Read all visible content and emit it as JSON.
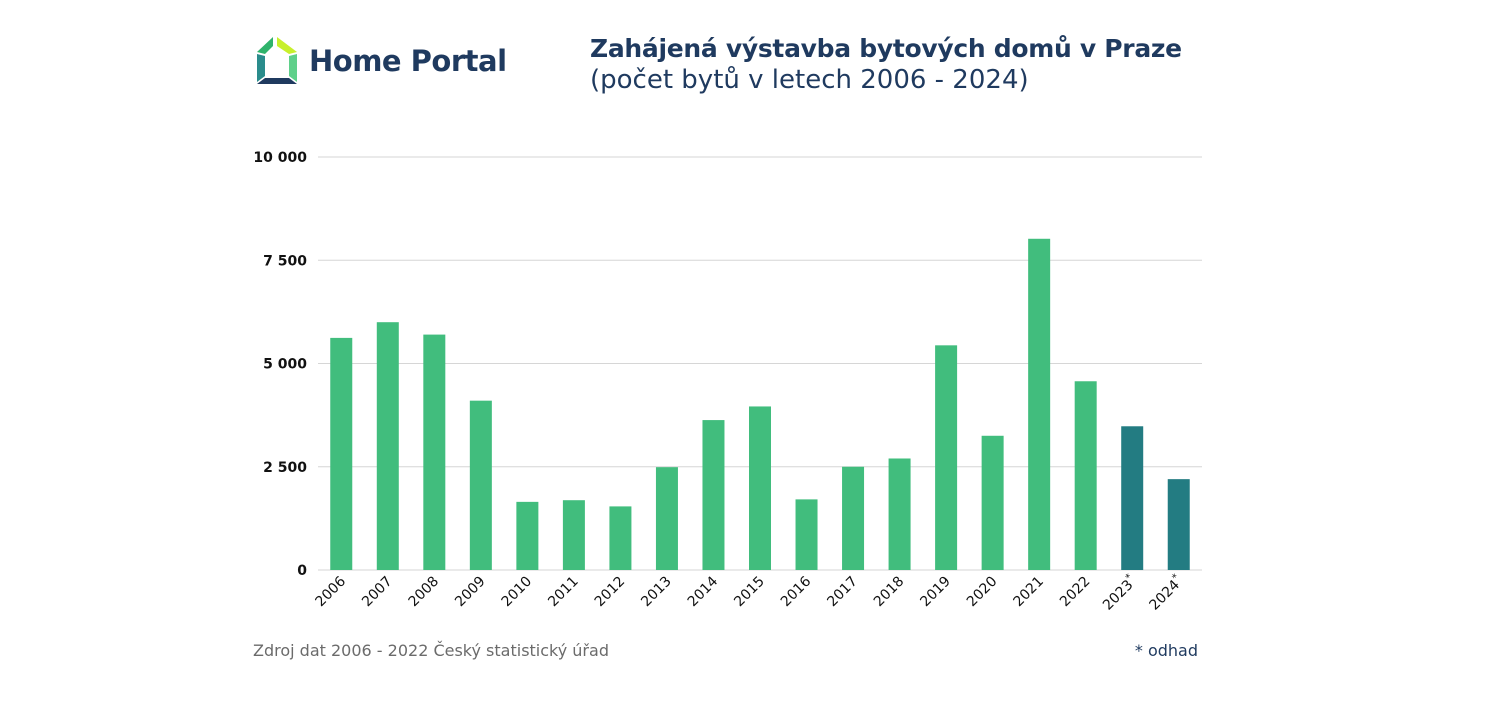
{
  "brand": {
    "name": "Home Portal",
    "colors": {
      "dark": "#1f3a5f",
      "green": "#2fb36b",
      "lime": "#c8f02c",
      "teal": "#2a8c8c"
    }
  },
  "header": {
    "title": "Zahájená výstavba bytových domů v Praze",
    "subtitle": "(počet bytů v letech 2006 - 2024)"
  },
  "footer": {
    "source": "Zdroj dat 2006 - 2022 Český statistický úřad",
    "note": "* odhad"
  },
  "chart_data": {
    "type": "bar",
    "title": "Zahájená výstavba bytových domů v Praze",
    "subtitle": "(počet bytů v letech 2006 - 2024)",
    "xlabel": "",
    "ylabel": "",
    "ylim": [
      0,
      10000
    ],
    "yticks": [
      0,
      2500,
      5000,
      7500,
      10000
    ],
    "ytick_labels": [
      "0",
      "2 500",
      "5 000",
      "7 500",
      "10 000"
    ],
    "grid": true,
    "categories": [
      "2006",
      "2007",
      "2008",
      "2009",
      "2010",
      "2011",
      "2012",
      "2013",
      "2014",
      "2015",
      "2016",
      "2017",
      "2018",
      "2019",
      "2020",
      "2021",
      "2022",
      "2023",
      "2024"
    ],
    "values": [
      5620,
      6000,
      5700,
      4100,
      1650,
      1690,
      1540,
      2490,
      3630,
      3960,
      1710,
      2500,
      2700,
      5440,
      3250,
      8020,
      4570,
      3480,
      2200
    ],
    "estimated": [
      false,
      false,
      false,
      false,
      false,
      false,
      false,
      false,
      false,
      false,
      false,
      false,
      false,
      false,
      false,
      false,
      false,
      true,
      true
    ],
    "estimate_marker": "*",
    "colors": {
      "actual": "#41bd7d",
      "estimate": "#237c82",
      "grid": "#d6d6d6",
      "tick_label": "#111111"
    }
  }
}
